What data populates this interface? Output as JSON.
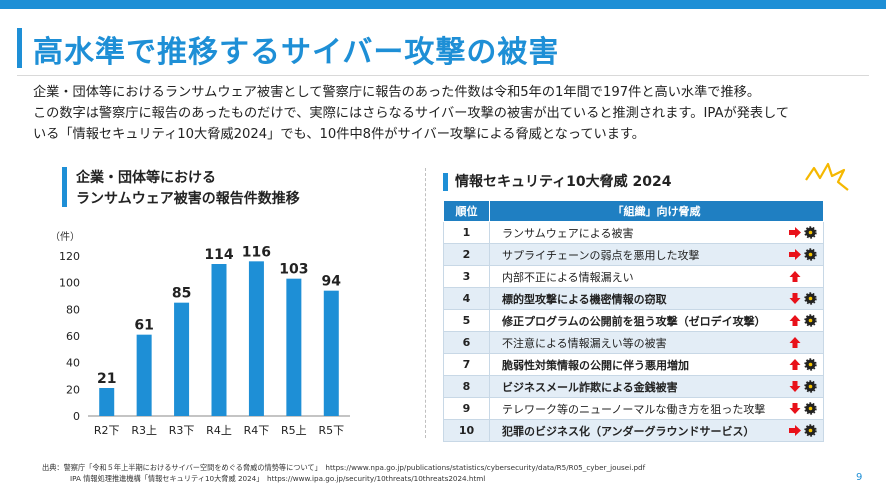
{
  "slide": {
    "title": "高水準で推移するサイバー攻撃の被害",
    "description": [
      "企業・団体等におけるランサムウェア被害として警察庁に報告のあった件数は令和5年の1年間で197件と高い水準で推移。",
      "この数字は警察庁に報告のあったものだけで、実際にはさらなるサイバー攻撃の被害が出ていると推測されます。IPAが発表して",
      "いる「情報セキュリティ10大脅威2024」でも、10件中8件がサイバー攻撃による脅威となっています。"
    ],
    "page_number": "9"
  },
  "left_panel": {
    "heading_line1": "企業・団体等における",
    "heading_line2": "ランサムウェア被害の報告件数推移"
  },
  "chart_data": {
    "type": "bar",
    "title": "",
    "ylabel": "（件）",
    "xlabel": "",
    "ylim": [
      0,
      120
    ],
    "yticks": [
      "0",
      "20",
      "40",
      "60",
      "80",
      "100",
      "120"
    ],
    "categories": [
      "R2下",
      "R3上",
      "R3下",
      "R4上",
      "R4下",
      "R5上",
      "R5下"
    ],
    "values": [
      21,
      61,
      85,
      114,
      116,
      103,
      94
    ],
    "data_labels": [
      "21",
      "61",
      "85",
      "114",
      "116",
      "103",
      "94"
    ],
    "bar_color": "#1e8fd6",
    "grid": false
  },
  "right_panel": {
    "heading": "情報セキュリティ10大脅威 2024",
    "table": {
      "headers": [
        "順位",
        "「組織」向け脅威"
      ],
      "rows": [
        {
          "rank": "1",
          "threat": "ランサムウェアによる被害",
          "bold": false,
          "trend": "right",
          "cyber": true
        },
        {
          "rank": "2",
          "threat": "サプライチェーンの弱点を悪用した攻撃",
          "bold": false,
          "trend": "right",
          "cyber": true
        },
        {
          "rank": "3",
          "threat": "内部不正による情報漏えい",
          "bold": false,
          "trend": "up",
          "cyber": false
        },
        {
          "rank": "4",
          "threat": "標的型攻撃による機密情報の窃取",
          "bold": true,
          "trend": "down",
          "cyber": true
        },
        {
          "rank": "5",
          "threat": "修正プログラムの公開前を狙う攻撃（ゼロデイ攻撃）",
          "bold": true,
          "trend": "up",
          "cyber": true
        },
        {
          "rank": "6",
          "threat": "不注意による情報漏えい等の被害",
          "bold": false,
          "trend": "up",
          "cyber": false
        },
        {
          "rank": "7",
          "threat": "脆弱性対策情報の公開に伴う悪用増加",
          "bold": true,
          "trend": "up",
          "cyber": true
        },
        {
          "rank": "8",
          "threat": "ビジネスメール詐欺による金銭被害",
          "bold": true,
          "trend": "down",
          "cyber": true
        },
        {
          "rank": "9",
          "threat": "テレワーク等のニューノーマルな働き方を狙った攻撃",
          "bold": false,
          "trend": "down",
          "cyber": true
        },
        {
          "rank": "10",
          "threat": "犯罪のビジネス化（アンダーグラウンドサービス）",
          "bold": true,
          "trend": "right",
          "cyber": true
        }
      ]
    },
    "colors": {
      "header_bg": "#1f7fc2",
      "trend_arrow": "#e8111a",
      "cyber_icon": "#222222"
    }
  },
  "footer": {
    "line1": "出典：警察庁「令和５年上半期におけるサイバー空間をめぐる脅威の情勢等について」　https://www.npa.go.jp/publications/statistics/cybersecurity/data/R5/R05_cyber_jousei.pdf",
    "line2": "IPA 情報処理推進機構「情報セキュリティ10大脅威 2024」　https://www.ipa.go.jp/security/10threats/10threats2024.html"
  }
}
